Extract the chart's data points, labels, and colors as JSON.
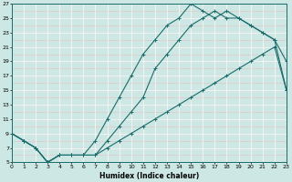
{
  "xlabel": "Humidex (Indice chaleur)",
  "bg_color": "#cde8e4",
  "line_color": "#1a6b6b",
  "grid_white_color": "#ffffff",
  "grid_pink_color": "#e0c0c0",
  "xlim": [
    0,
    23
  ],
  "ylim": [
    5,
    27
  ],
  "xticks": [
    0,
    1,
    2,
    3,
    4,
    5,
    6,
    7,
    8,
    9,
    10,
    11,
    12,
    13,
    14,
    15,
    16,
    17,
    18,
    19,
    20,
    21,
    22,
    23
  ],
  "yticks": [
    5,
    7,
    9,
    11,
    13,
    15,
    17,
    19,
    21,
    23,
    25,
    27
  ],
  "curve1_x": [
    0,
    1,
    2,
    3,
    4,
    5,
    6,
    7,
    8,
    9,
    10,
    11,
    12,
    13,
    14,
    15,
    16,
    17,
    18,
    19,
    20,
    21,
    22,
    23
  ],
  "curve1_y": [
    9,
    8,
    7,
    5,
    6,
    6,
    6,
    8,
    11,
    14,
    17,
    20,
    22,
    24,
    25,
    27,
    26,
    25,
    26,
    25,
    24,
    23,
    22,
    15
  ],
  "curve2_x": [
    0,
    1,
    2,
    3,
    4,
    5,
    6,
    7,
    8,
    9,
    10,
    11,
    12,
    13,
    14,
    15,
    16,
    17,
    18,
    19,
    20,
    21,
    22,
    23
  ],
  "curve2_y": [
    9,
    8,
    7,
    5,
    6,
    6,
    6,
    6,
    8,
    10,
    12,
    14,
    18,
    20,
    22,
    24,
    25,
    26,
    25,
    25,
    24,
    23,
    22,
    19
  ],
  "curve3_x": [
    0,
    1,
    2,
    3,
    4,
    5,
    6,
    7,
    8,
    9,
    10,
    11,
    12,
    13,
    14,
    15,
    16,
    17,
    18,
    19,
    20,
    21,
    22,
    23
  ],
  "curve3_y": [
    9,
    8,
    7,
    5,
    6,
    6,
    6,
    6,
    7,
    8,
    9,
    10,
    11,
    12,
    13,
    14,
    15,
    16,
    17,
    18,
    19,
    20,
    21,
    15
  ],
  "marker_size": 2.5,
  "line_width": 0.8
}
